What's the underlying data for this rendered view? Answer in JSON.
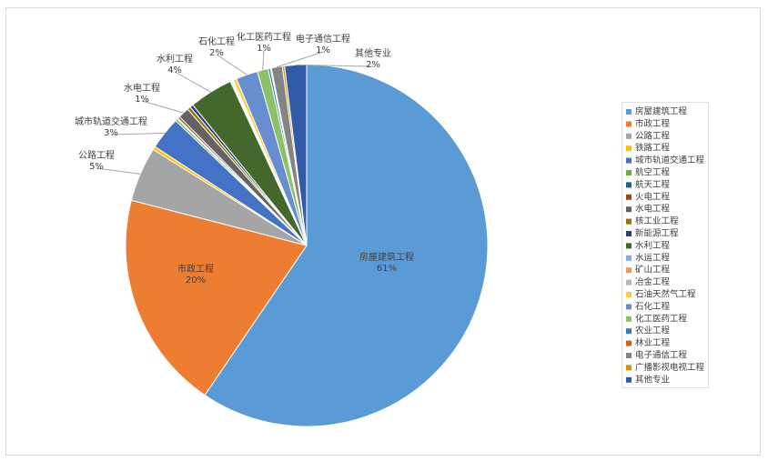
{
  "chart_data": {
    "type": "pie",
    "categories": [
      "房屋建筑工程",
      "市政工程",
      "公路工程",
      "铁路工程",
      "城市轨道交通工程",
      "航空工程",
      "航天工程",
      "火电工程",
      "水电工程",
      "核工业工程",
      "新能源工程",
      "水利工程",
      "水运工程",
      "矿山工程",
      "冶金工程",
      "石油天然气工程",
      "石化工程",
      "化工医药工程",
      "农业工程",
      "林业工程",
      "电子通信工程",
      "广播影视电视工程",
      "其他专业"
    ],
    "values": [
      61,
      20,
      5,
      0.3,
      3,
      0.2,
      0.1,
      0.2,
      1,
      0.3,
      0.3,
      4,
      0.1,
      0.1,
      0.1,
      0.3,
      2,
      1,
      0.2,
      0.1,
      1,
      0.2,
      2
    ],
    "value_labels": [
      "61%",
      "20%",
      "5%",
      null,
      "3%",
      null,
      null,
      null,
      "1%",
      null,
      null,
      "4%",
      null,
      null,
      null,
      null,
      "2%",
      "1%",
      null,
      null,
      "1%",
      null,
      "2%"
    ],
    "colors": [
      "#5b9bd5",
      "#ed7d31",
      "#a5a5a5",
      "#ffc000",
      "#4472c4",
      "#70ad47",
      "#255e91",
      "#9e480e",
      "#636363",
      "#997300",
      "#264478",
      "#43682b",
      "#7cafdd",
      "#f1975a",
      "#b7b7b7",
      "#ffcd33",
      "#698ed0",
      "#8cc168",
      "#327dc2",
      "#d26012",
      "#848484",
      "#cc9a00",
      "#335aa6"
    ],
    "legend": "right"
  }
}
